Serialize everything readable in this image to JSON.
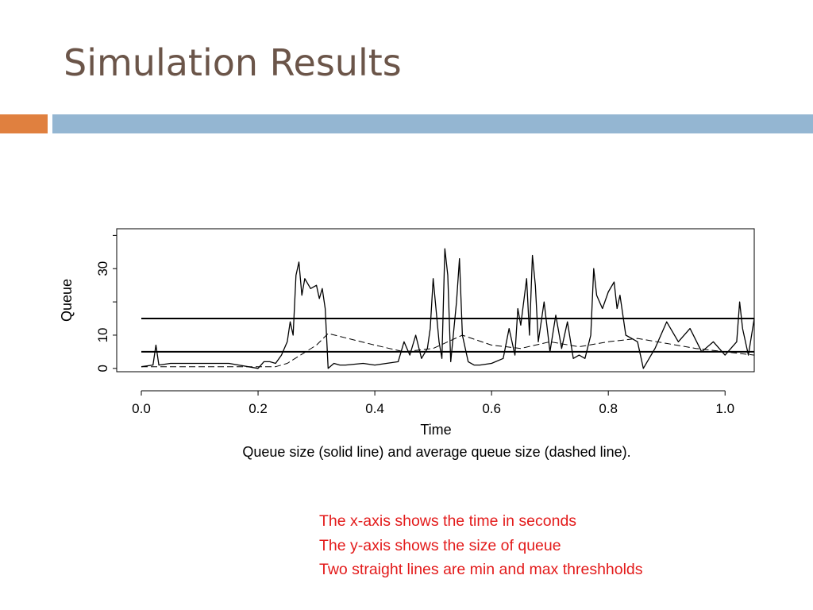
{
  "slide": {
    "title": "Simulation Results",
    "accent_orange": "#e0803f",
    "accent_blue": "#94b6d2",
    "title_color": "#6b5549",
    "note_color": "#e31b1b"
  },
  "notes": [
    "The x-axis shows the time in seconds",
    "The y-axis shows the size of queue",
    "Two straight lines are min and max threshholds"
  ],
  "chart_data": {
    "type": "line",
    "xlabel": "Time",
    "ylabel": "Queue",
    "caption": "Queue size (solid line) and average queue size (dashed line).",
    "xlim": [
      0,
      1.05
    ],
    "ylim": [
      -1,
      42
    ],
    "x_ticks": [
      "0.0",
      "0.2",
      "0.4",
      "0.6",
      "0.8",
      "1.0"
    ],
    "x_tick_values": [
      0,
      0.2,
      0.4,
      0.6,
      0.8,
      1.0
    ],
    "y_ticks": [
      "0",
      "10",
      "30"
    ],
    "y_tick_values": [
      0,
      10,
      30
    ],
    "y_minor_ticks": [
      20,
      40
    ],
    "thresholds": [
      5,
      15
    ],
    "series": [
      {
        "style": "solid",
        "x": [
          0,
          0.02,
          0.025,
          0.03,
          0.05,
          0.1,
          0.15,
          0.2,
          0.21,
          0.22,
          0.23,
          0.24,
          0.25,
          0.255,
          0.26,
          0.265,
          0.27,
          0.275,
          0.28,
          0.29,
          0.3,
          0.305,
          0.31,
          0.315,
          0.32,
          0.33,
          0.34,
          0.35,
          0.38,
          0.4,
          0.42,
          0.44,
          0.45,
          0.46,
          0.47,
          0.48,
          0.49,
          0.495,
          0.5,
          0.51,
          0.515,
          0.52,
          0.525,
          0.53,
          0.54,
          0.545,
          0.55,
          0.56,
          0.57,
          0.58,
          0.6,
          0.62,
          0.63,
          0.64,
          0.645,
          0.65,
          0.66,
          0.665,
          0.67,
          0.675,
          0.68,
          0.69,
          0.7,
          0.71,
          0.72,
          0.73,
          0.74,
          0.75,
          0.76,
          0.77,
          0.775,
          0.78,
          0.79,
          0.8,
          0.81,
          0.815,
          0.82,
          0.83,
          0.84,
          0.85,
          0.86,
          0.88,
          0.9,
          0.92,
          0.94,
          0.96,
          0.98,
          1.0,
          1.02,
          1.025,
          1.03,
          1.04,
          1.05
        ],
        "y": [
          0.5,
          1,
          7,
          1,
          1.5,
          1.5,
          1.5,
          0,
          2,
          2,
          1.5,
          4,
          8,
          14,
          10,
          28,
          32,
          22,
          27,
          24,
          25,
          21,
          24,
          18,
          0,
          1.5,
          1,
          1,
          1.5,
          1,
          1.5,
          2,
          8,
          4,
          10,
          3,
          6,
          12,
          27,
          8,
          3,
          36,
          28,
          2,
          20,
          33,
          10,
          2,
          1,
          1,
          1.5,
          3,
          12,
          4,
          18,
          13,
          27,
          10,
          34,
          25,
          8,
          20,
          5,
          16,
          6,
          14,
          3,
          4,
          3,
          10,
          30,
          22,
          18,
          23,
          26,
          18,
          22,
          10,
          9,
          8,
          0,
          6,
          14,
          8,
          12,
          5,
          8,
          4,
          8,
          20,
          12,
          4,
          15
        ]
      },
      {
        "style": "dashed",
        "x": [
          0,
          0.23,
          0.25,
          0.3,
          0.32,
          0.4,
          0.45,
          0.5,
          0.55,
          0.6,
          0.65,
          0.7,
          0.75,
          0.8,
          0.85,
          0.9,
          0.95,
          1.0,
          1.05
        ],
        "y": [
          0.5,
          0.5,
          1.5,
          7,
          10.5,
          7,
          5,
          6,
          10,
          7,
          6,
          8,
          6.5,
          8,
          9,
          7.5,
          6,
          5,
          4
        ]
      }
    ]
  }
}
